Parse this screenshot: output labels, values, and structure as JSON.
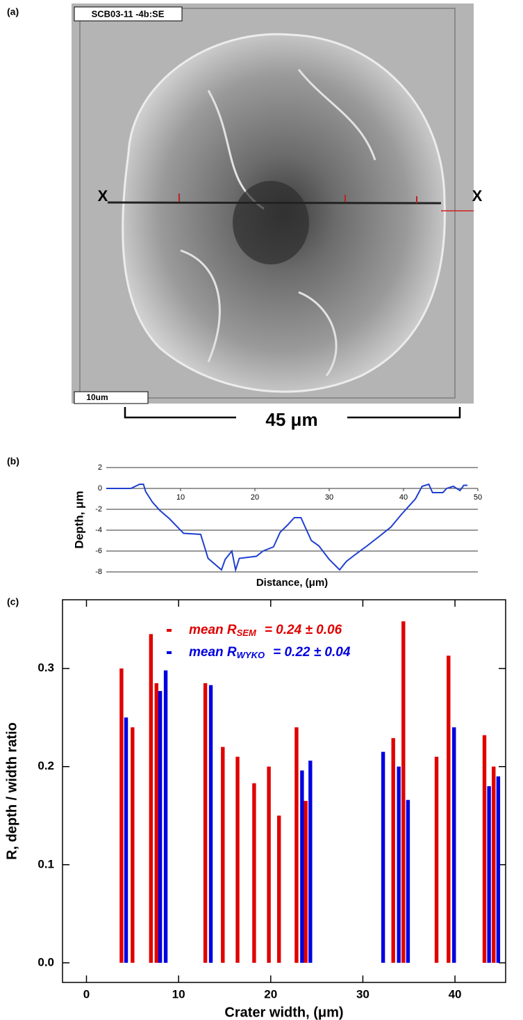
{
  "panel_a": {
    "label": "(a)",
    "image_label": "SCB03-11 -4b:SE",
    "scale_bar": "10um",
    "marker_left": "X",
    "marker_right": "X",
    "width_label": "45 μm"
  },
  "chart_data": [
    {
      "type": "line",
      "panel_label": "(b)",
      "x_label": "Distance, (μm)",
      "y_label": "Depth,  μm",
      "x": [
        0,
        3.3,
        4.5,
        5.0,
        5.3,
        6.2,
        7.2,
        8.5,
        10.4,
        12.7,
        13.7,
        15.5,
        16.0,
        16.9,
        17.4,
        17.9,
        20.2,
        21.1,
        22.5,
        23.4,
        24.4,
        25.3,
        26.2,
        26.7,
        27.6,
        28.6,
        30.0,
        31.4,
        32.3,
        33.2,
        35.1,
        36.9,
        38.3,
        39.7,
        41.6,
        42.5,
        43.4,
        43.9,
        45.3,
        45.8,
        46.7,
        47.6,
        48.1,
        48.6
      ],
      "values": [
        0,
        0,
        0.4,
        0.4,
        -0.3,
        -1.3,
        -2.1,
        -2.9,
        -4.3,
        -4.4,
        -6.7,
        -7.8,
        -6.8,
        -6.0,
        -7.8,
        -6.7,
        -6.5,
        -6.0,
        -5.6,
        -4.2,
        -3.5,
        -2.8,
        -2.8,
        -3.6,
        -5.0,
        -5.5,
        -6.8,
        -7.8,
        -7.0,
        -6.5,
        -5.5,
        -4.5,
        -3.7,
        -2.5,
        -1.0,
        0.2,
        0.4,
        -0.4,
        -0.4,
        0,
        0.2,
        -0.2,
        0.3,
        0.3
      ],
      "color": "#1f3fd0",
      "xlim": [
        0,
        50
      ],
      "xticks": [
        10,
        20,
        30,
        40,
        50
      ],
      "ylim": [
        -8,
        2
      ],
      "yticks": [
        2,
        0,
        -2,
        -4,
        -6,
        -8
      ],
      "grid": true
    },
    {
      "type": "bar",
      "panel_label": "(c)",
      "x_label": "Crater width, (μm)",
      "y_label": "R, depth / width ratio",
      "series": [
        {
          "name": "mean R",
          "name_sub": "SEM",
          "name_rest": "= 0.24 ± 0.06",
          "color": "#e00000",
          "x": [
            3.8,
            5.0,
            7.0,
            7.6,
            12.9,
            14.8,
            16.4,
            18.2,
            19.8,
            20.9,
            22.8,
            23.8,
            33.3,
            34.4,
            38.0,
            39.3,
            43.2,
            44.2
          ],
          "values": [
            0.3,
            0.24,
            0.335,
            0.285,
            0.285,
            0.22,
            0.21,
            0.183,
            0.2,
            0.15,
            0.24,
            0.165,
            0.229,
            0.348,
            0.21,
            0.313,
            0.232,
            0.2
          ]
        },
        {
          "name": "mean R",
          "name_sub": "WYKO",
          "name_rest": "= 0.22 ± 0.04",
          "color": "#0000e0",
          "x": [
            4.3,
            8.0,
            8.6,
            13.5,
            23.4,
            24.3,
            32.2,
            33.9,
            34.9,
            39.9,
            43.7,
            44.7
          ],
          "values": [
            0.25,
            0.277,
            0.298,
            0.283,
            0.196,
            0.206,
            0.215,
            0.2,
            0.166,
            0.24,
            0.18,
            0.19
          ]
        }
      ],
      "xlim": [
        -2.6,
        45.5
      ],
      "xticks": [
        0,
        10,
        20,
        30,
        40
      ],
      "ylim": [
        -0.02,
        0.37
      ],
      "yticks": [
        {
          "value": 0,
          "label": "0.0"
        },
        0.1,
        0.2,
        0.3
      ]
    }
  ]
}
